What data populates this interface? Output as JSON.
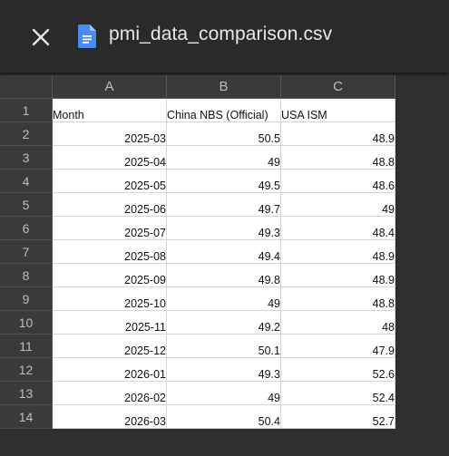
{
  "header": {
    "close_icon": "close-icon",
    "file_icon": "google-docs-file-icon",
    "file_name": "pmi_data_comparison.csv"
  },
  "sheet": {
    "columns": [
      "A",
      "B",
      "C"
    ],
    "row_numbers": [
      "1",
      "2",
      "3",
      "4",
      "5",
      "6",
      "7",
      "8",
      "9",
      "10",
      "11",
      "12",
      "13",
      "14"
    ],
    "header_row": [
      "Month",
      "China NBS (Official)",
      "USA ISM"
    ],
    "rows": [
      [
        "2025-03",
        "50.5",
        "48.9"
      ],
      [
        "2025-04",
        "49",
        "48.8"
      ],
      [
        "2025-05",
        "49.5",
        "48.6"
      ],
      [
        "2025-06",
        "49.7",
        "49"
      ],
      [
        "2025-07",
        "49.3",
        "48.4"
      ],
      [
        "2025-08",
        "49.4",
        "48.9"
      ],
      [
        "2025-09",
        "49.8",
        "48.9"
      ],
      [
        "2025-10",
        "49",
        "48.8"
      ],
      [
        "2025-11",
        "49.2",
        "48"
      ],
      [
        "2025-12",
        "50.1",
        "47.9"
      ],
      [
        "2026-01",
        "49.3",
        "52.6"
      ],
      [
        "2026-02",
        "49",
        "52.4"
      ],
      [
        "2026-03",
        "50.4",
        "52.7"
      ]
    ]
  }
}
